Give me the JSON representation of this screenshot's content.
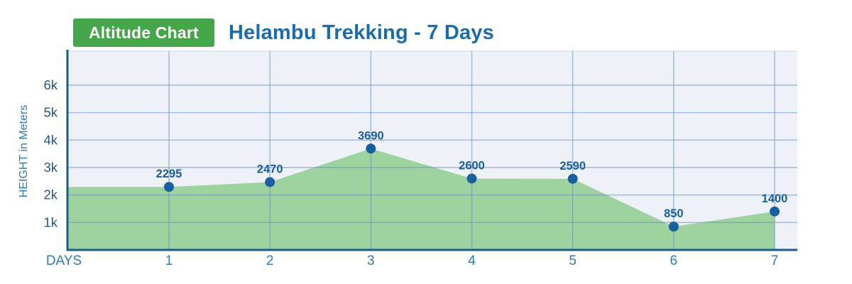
{
  "header": {
    "badge_label": "Altitude Chart",
    "title": "Helambu Trekking - 7 Days"
  },
  "chart_data": {
    "type": "area",
    "title": "Helambu Trekking - 7 Days",
    "xlabel": "DAYS",
    "ylabel": "HEIGHT in Meters",
    "categories": [
      "1",
      "2",
      "3",
      "4",
      "5",
      "6",
      "7"
    ],
    "values": [
      2295,
      2470,
      3690,
      2600,
      2590,
      850,
      1400
    ],
    "point_labels": [
      "2295",
      "2470",
      "3690",
      "2600",
      "2590",
      "850",
      "1400"
    ],
    "y_ticks": [
      {
        "v": 1000,
        "label": "1k"
      },
      {
        "v": 2000,
        "label": "2k"
      },
      {
        "v": 3000,
        "label": "3k"
      },
      {
        "v": 4000,
        "label": "4k"
      },
      {
        "v": 5000,
        "label": "5k"
      },
      {
        "v": 6000,
        "label": "6k"
      }
    ],
    "ylim": [
      0,
      7240
    ],
    "grid": true,
    "legend": false,
    "area_extends_to_left_axis": true
  },
  "colors": {
    "badge_bg": "#45a649",
    "badge_text": "#ffffff",
    "title_text": "#1c6bab",
    "plot_bg": "#eef2f8",
    "plot_top_border": "#d9e3ee",
    "area_fill": "#9ed3a0",
    "grid_line": "rgba(105, 148, 194, 0.55)",
    "axis_line": "#1a5c8c",
    "point_fill": "#1a5f9e",
    "value_label": "#1b5f9e",
    "x_tick_label": "#2e7bb5",
    "y_tick_label": "#27568c",
    "axis_title": "#2e7bb5"
  }
}
